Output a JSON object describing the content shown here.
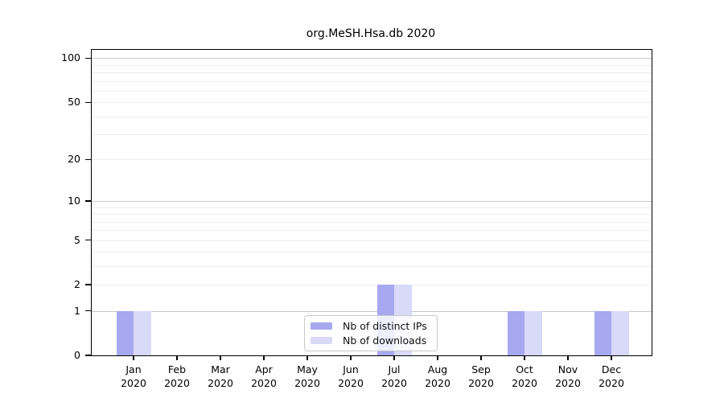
{
  "chart_data": {
    "type": "bar",
    "title": "org.MeSH.Hsa.db 2020",
    "categories": [
      "Jan",
      "Feb",
      "Mar",
      "Apr",
      "May",
      "Jun",
      "Jul",
      "Aug",
      "Sep",
      "Oct",
      "Nov",
      "Dec"
    ],
    "x_year": "2020",
    "series": [
      {
        "name": "Nb of distinct IPs",
        "color": "#a8a8f0",
        "values": [
          1,
          0,
          0,
          0,
          0,
          0,
          2,
          0,
          0,
          1,
          0,
          1
        ]
      },
      {
        "name": "Nb of downloads",
        "color": "#d9d9f8",
        "values": [
          1,
          0,
          0,
          0,
          0,
          0,
          2,
          0,
          0,
          1,
          0,
          1
        ]
      }
    ],
    "y_axis": {
      "scale": "log1p",
      "ticks": [
        0,
        1,
        2,
        5,
        10,
        20,
        50,
        100
      ],
      "decade_gridlines": [
        1,
        10,
        100
      ],
      "minor_gridlines": [
        2,
        3,
        4,
        5,
        6,
        7,
        8,
        9,
        20,
        30,
        40,
        50,
        60,
        70,
        80,
        90
      ],
      "ylim": [
        0,
        114
      ]
    },
    "legend_position": "bottom-center",
    "grid": "horizontal"
  }
}
